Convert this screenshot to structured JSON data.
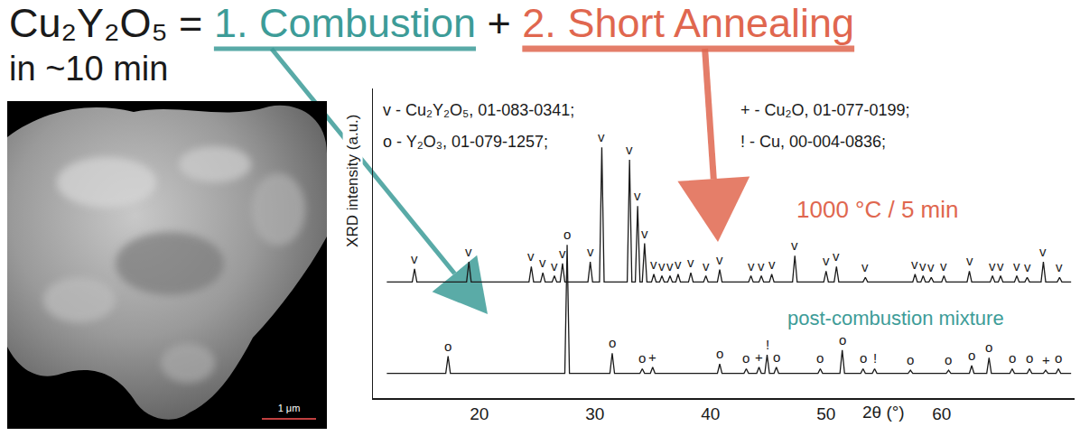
{
  "header": {
    "title_parts": [
      {
        "text": "Cu₂Y₂O₅ = ",
        "color": "#1a1a1a"
      },
      {
        "text": "1. Combustion",
        "color": "#3d9c98"
      },
      {
        "text": " + ",
        "color": "#1a1a1a"
      },
      {
        "text": "2. Short Annealing",
        "color": "#e0674f"
      }
    ],
    "subtitle": "in ~10 min"
  },
  "image": {
    "scale_bar": "1 μm"
  },
  "chart_data": {
    "type": "line",
    "xlabel": "2θ (°)",
    "ylabel": "XRD intensity (a.u.)",
    "xlim": [
      10.8,
      71.5
    ],
    "xticks": [
      20,
      30,
      40,
      50,
      60
    ],
    "ylim": [
      0,
      100
    ],
    "yticks": [],
    "tick_labels": "x",
    "grid": false,
    "series": [
      {
        "color": "#1a1a1a",
        "x": [
          12,
          14.2,
          14.4,
          14.6,
          18.9,
          19.1,
          19.3,
          24.3,
          24.5,
          24.7,
          25.3,
          25.5,
          25.7,
          26.3,
          26.5,
          26.7,
          27.0,
          27.2,
          27.4,
          29.4,
          29.6,
          29.8,
          30.4,
          30.6,
          30.8,
          32.8,
          33.0,
          33.2,
          33.5,
          33.7,
          33.9,
          34.1,
          34.3,
          34.5,
          34.9,
          35.1,
          35.3,
          35.6,
          35.8,
          36.0,
          36.3,
          36.5,
          36.7,
          37.0,
          37.2,
          37.4,
          38.1,
          38.3,
          38.5,
          39.4,
          39.6,
          39.8,
          40.6,
          40.8,
          41.0,
          43.3,
          43.5,
          43.7,
          44.2,
          44.4,
          44.6,
          45.1,
          45.3,
          45.5,
          47.1,
          47.3,
          47.5,
          49.8,
          50.0,
          50.2,
          50.7,
          50.9,
          51.1,
          53.2,
          53.4,
          53.6,
          57.5,
          57.7,
          57.9,
          58.2,
          58.4,
          58.6,
          58.9,
          59.1,
          59.3,
          60.0,
          60.2,
          60.4,
          62.2,
          62.4,
          62.6,
          64.2,
          64.4,
          64.6,
          64.9,
          65.1,
          65.3,
          66.3,
          66.5,
          66.7,
          67.2,
          67.4,
          67.6,
          68.6,
          68.8,
          69.0,
          70.0,
          70.2,
          70.4,
          71.2
        ],
        "values": [
          37.5,
          37.5,
          41.7,
          37.5,
          37.5,
          44,
          37.5,
          37.5,
          42.5,
          37.5,
          37.5,
          40.5,
          37.5,
          37.5,
          39.5,
          37.5,
          37.5,
          43.5,
          37.5,
          37.5,
          44,
          37.5,
          37.5,
          81,
          37.5,
          37.5,
          77,
          37.5,
          37.5,
          62,
          37.5,
          37.5,
          50,
          37.5,
          37.5,
          40,
          37.5,
          37.5,
          39.5,
          37.5,
          37.5,
          39.5,
          37.5,
          37.5,
          40,
          37.5,
          37.5,
          40.5,
          37.5,
          37.5,
          39.5,
          37.5,
          37.5,
          41.5,
          37.5,
          37.5,
          39.5,
          37.5,
          37.5,
          39.5,
          37.5,
          37.5,
          40,
          37.5,
          37.5,
          46,
          37.5,
          37.5,
          41,
          37.5,
          37.5,
          42.5,
          37.5,
          37.5,
          39,
          37.5,
          37.5,
          40,
          37.5,
          37.5,
          39.5,
          37.5,
          37.5,
          39,
          37.5,
          37.5,
          39.5,
          37.5,
          37.5,
          41,
          37.5,
          37.5,
          39.5,
          37.5,
          37.5,
          39.5,
          37.5,
          37.5,
          39.5,
          37.5,
          37.5,
          39,
          37.5,
          37.5,
          44,
          37.5,
          37.5,
          39,
          37.5,
          37.5
        ],
        "peak_labels": [
          {
            "x": 14.4,
            "text": "v"
          },
          {
            "x": 19.1,
            "text": "v"
          },
          {
            "x": 24.5,
            "text": "v"
          },
          {
            "x": 25.5,
            "text": "v"
          },
          {
            "x": 26.5,
            "text": "v"
          },
          {
            "x": 27.2,
            "text": "v"
          },
          {
            "x": 29.6,
            "text": "v"
          },
          {
            "x": 30.6,
            "text": "v"
          },
          {
            "x": 33.0,
            "text": "v"
          },
          {
            "x": 33.7,
            "text": "v"
          },
          {
            "x": 34.3,
            "text": "v"
          },
          {
            "x": 35.1,
            "text": "v"
          },
          {
            "x": 35.8,
            "text": "v"
          },
          {
            "x": 36.5,
            "text": "v"
          },
          {
            "x": 37.2,
            "text": "v"
          },
          {
            "x": 38.3,
            "text": "v"
          },
          {
            "x": 39.6,
            "text": "v"
          },
          {
            "x": 40.8,
            "text": "v"
          },
          {
            "x": 43.5,
            "text": "v"
          },
          {
            "x": 44.4,
            "text": "v"
          },
          {
            "x": 45.3,
            "text": "v"
          },
          {
            "x": 47.3,
            "text": "v"
          },
          {
            "x": 50.0,
            "text": "v"
          },
          {
            "x": 50.9,
            "text": "v"
          },
          {
            "x": 53.4,
            "text": "v"
          },
          {
            "x": 57.7,
            "text": "v"
          },
          {
            "x": 58.4,
            "text": "v"
          },
          {
            "x": 59.1,
            "text": "v"
          },
          {
            "x": 60.2,
            "text": "v"
          },
          {
            "x": 62.4,
            "text": "v"
          },
          {
            "x": 64.4,
            "text": "v"
          },
          {
            "x": 65.1,
            "text": "v"
          },
          {
            "x": 66.5,
            "text": "v"
          },
          {
            "x": 67.4,
            "text": "v"
          },
          {
            "x": 68.8,
            "text": "v"
          },
          {
            "x": 70.2,
            "text": "v"
          }
        ]
      },
      {
        "color": "#1a1a1a",
        "x": [
          12,
          17.1,
          17.3,
          17.5,
          27.4,
          27.6,
          27.8,
          31.3,
          31.5,
          31.7,
          33.9,
          34.1,
          34.3,
          34.8,
          35.0,
          35.2,
          40.6,
          40.8,
          41.0,
          42.9,
          43.1,
          43.3,
          44.0,
          44.2,
          44.4,
          44.7,
          44.9,
          45.1,
          45.5,
          45.7,
          45.9,
          49.3,
          49.5,
          49.7,
          51.2,
          51.4,
          51.6,
          53.0,
          53.2,
          53.4,
          54.0,
          54.2,
          54.4,
          57.1,
          57.3,
          57.5,
          60.4,
          60.6,
          60.8,
          62.4,
          62.6,
          62.8,
          63.9,
          64.1,
          64.3,
          65.9,
          66.1,
          66.3,
          67.4,
          67.6,
          67.8,
          68.8,
          69.0,
          69.2,
          69.9,
          70.1,
          70.3,
          71.2
        ],
        "values": [
          8,
          8,
          13.5,
          8,
          8,
          49.5,
          8,
          8,
          14.5,
          8,
          8,
          9.5,
          8,
          8,
          10,
          8,
          8,
          11,
          8,
          8,
          9.5,
          8,
          8,
          10,
          8,
          8,
          14,
          8,
          8,
          10,
          8,
          8,
          9.5,
          8,
          8,
          15.5,
          8,
          8,
          9.5,
          8,
          8,
          9.5,
          8,
          8,
          9,
          8,
          8,
          9,
          8,
          8,
          10.5,
          8,
          8,
          13,
          8,
          8,
          9.5,
          8,
          8,
          9.5,
          8,
          8,
          9,
          8,
          8,
          9.5,
          8,
          8
        ],
        "peak_labels": [
          {
            "x": 17.3,
            "text": "o"
          },
          {
            "x": 27.6,
            "text": "o"
          },
          {
            "x": 31.5,
            "text": "o"
          },
          {
            "x": 34.1,
            "text": "o"
          },
          {
            "x": 35.0,
            "text": "+"
          },
          {
            "x": 40.8,
            "text": "o"
          },
          {
            "x": 43.1,
            "text": "o"
          },
          {
            "x": 44.2,
            "text": "+"
          },
          {
            "x": 44.9,
            "text": "!"
          },
          {
            "x": 45.7,
            "text": "o"
          },
          {
            "x": 49.5,
            "text": "o"
          },
          {
            "x": 51.4,
            "text": "o"
          },
          {
            "x": 53.2,
            "text": "o"
          },
          {
            "x": 54.2,
            "text": "!"
          },
          {
            "x": 57.3,
            "text": "o"
          },
          {
            "x": 60.6,
            "text": "o"
          },
          {
            "x": 62.6,
            "text": "o"
          },
          {
            "x": 64.1,
            "text": "o"
          },
          {
            "x": 66.1,
            "text": "o"
          },
          {
            "x": 67.6,
            "text": "o"
          },
          {
            "x": 69.0,
            "text": "+"
          },
          {
            "x": 70.1,
            "text": "o"
          }
        ]
      }
    ],
    "annotations": [
      {
        "text": "v - Cu₂Y₂O₅, 01-083-0341;",
        "color": "#1a1a1a"
      },
      {
        "text": "+ - Cu₂O, 01-077-0199;",
        "color": "#1a1a1a"
      },
      {
        "text": "o - Y₂O₃, 01-079-1257;",
        "color": "#1a1a1a"
      },
      {
        "text": "! - Cu, 00-004-0836;",
        "color": "#1a1a1a"
      },
      {
        "text": "1000 °C / 5 min",
        "color": "#e0674f"
      },
      {
        "text": "post-combustion mixture",
        "color": "#3d9c98"
      }
    ]
  }
}
